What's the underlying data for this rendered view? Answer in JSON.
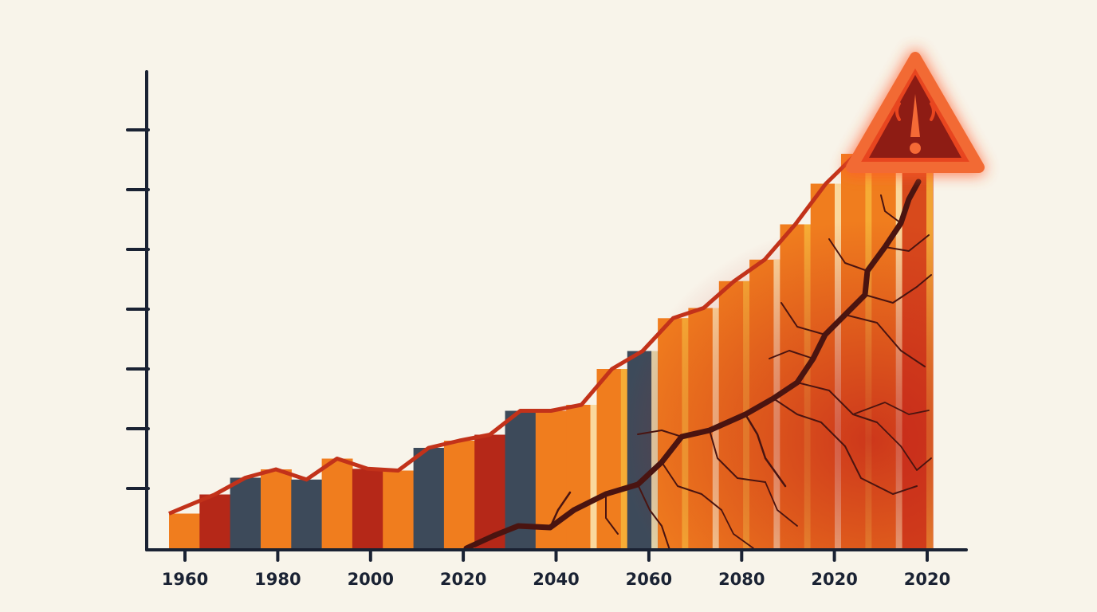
{
  "chart_data": {
    "type": "bar",
    "title": "",
    "xlabel": "",
    "ylabel": "",
    "x_tick_labels": [
      "1960",
      "1980",
      "2000",
      "2020",
      "2040",
      "2060",
      "2080",
      "2020",
      "2020"
    ],
    "ylim": [
      0,
      8
    ],
    "y_ticks": [
      1,
      2,
      3,
      4,
      5,
      6,
      7
    ],
    "grid": false,
    "legend": "none",
    "categories": [
      "1",
      "2",
      "3",
      "4",
      "5",
      "6",
      "7",
      "8",
      "9",
      "10",
      "11",
      "12",
      "13",
      "14",
      "15",
      "16",
      "17",
      "18",
      "19",
      "20",
      "21",
      "22",
      "23",
      "24",
      "25"
    ],
    "values": [
      0.58,
      0.9,
      1.18,
      1.32,
      1.15,
      1.5,
      1.33,
      1.3,
      1.68,
      1.8,
      1.9,
      2.3,
      2.3,
      2.4,
      3.0,
      3.3,
      3.85,
      4.02,
      4.47,
      4.83,
      5.42,
      6.1,
      6.6,
      7.05,
      6.55
    ],
    "bar_colors": [
      "#f07d1e",
      "#b52818",
      "#3d4a5a",
      "#f07d1e",
      "#3d4a5a",
      "#f07d1e",
      "#b52818",
      "#f07d1e",
      "#3d4a5a",
      "#f07d1e",
      "#b52818",
      "#3d4a5a",
      "#f07d1e",
      "#f07d1e",
      "#f07d1e",
      "#3d4a5a",
      "#f07d1e",
      "#f07d1e",
      "#f07d1e",
      "#f07d1e",
      "#f07d1e",
      "#f07d1e",
      "#f07d1e",
      "#f07d1e",
      "#d84a1c"
    ],
    "trend_line": [
      0.58,
      0.9,
      1.18,
      1.32,
      1.15,
      1.5,
      1.33,
      1.3,
      1.68,
      1.8,
      1.9,
      2.3,
      2.3,
      2.4,
      3.0,
      3.3,
      3.85,
      4.02,
      4.47,
      4.83,
      5.42,
      6.1,
      6.6,
      7.05,
      7.2
    ]
  },
  "annotations": {
    "warning_icon": "warning-triangle-icon",
    "crack": "crack-overlay"
  },
  "colors": {
    "background": "#f8f4ea",
    "axis": "#1a2233",
    "orange": "#f07d1e",
    "red": "#b52818",
    "slate": "#3d4a5a",
    "trend": "#c2321a",
    "warning": "#e8451f"
  }
}
